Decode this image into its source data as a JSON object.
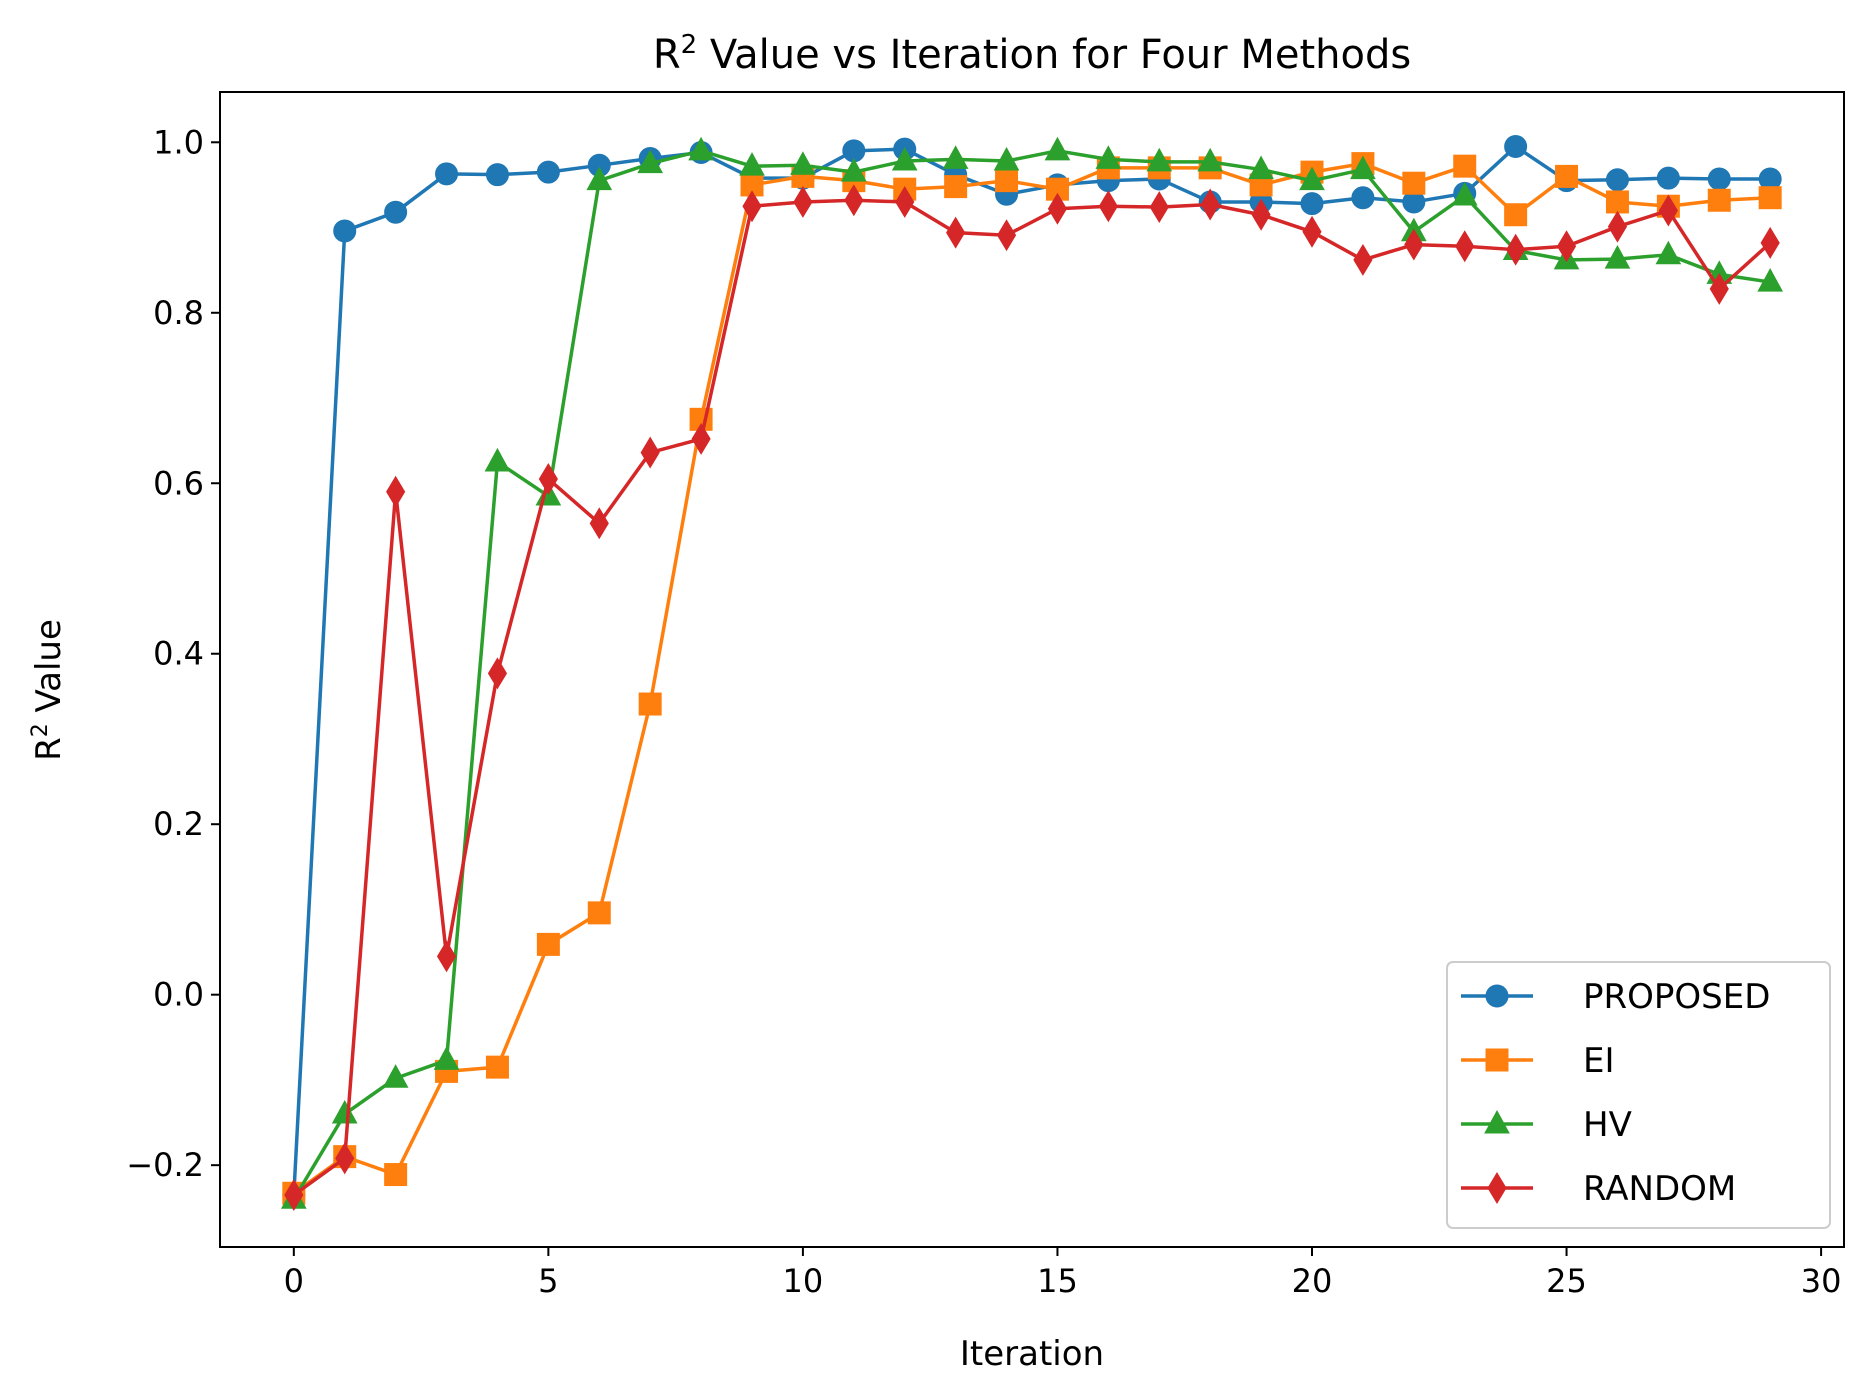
{
  "chart_data": {
    "type": "line",
    "title_main": "R",
    "title_sup": "2",
    "title_rest": " Value vs Iteration for Four Methods",
    "xlabel": "Iteration",
    "ylabel_main": "R",
    "ylabel_sup": "2",
    "ylabel_rest": " Value",
    "xlim": [
      -1.45,
      30.45
    ],
    "ylim": [
      -0.296,
      1.059
    ],
    "xticks": [
      0,
      5,
      10,
      15,
      20,
      25,
      30
    ],
    "xtick_labels": [
      "0",
      "5",
      "10",
      "15",
      "20",
      "25",
      "30"
    ],
    "yticks": [
      -0.2,
      0.0,
      0.2,
      0.4,
      0.6,
      0.8,
      1.0
    ],
    "ytick_labels": [
      "−0.2",
      "0.0",
      "0.2",
      "0.4",
      "0.6",
      "0.8",
      "1.0"
    ],
    "grid": false,
    "legend_position": "lower-right",
    "x": [
      0,
      1,
      2,
      3,
      4,
      5,
      6,
      7,
      8,
      9,
      10,
      11,
      12,
      13,
      14,
      15,
      16,
      17,
      18,
      19,
      20,
      21,
      22,
      23,
      24,
      25,
      26,
      27,
      28,
      29
    ],
    "series": [
      {
        "name": "PROPOSED",
        "color": "#1f77b4",
        "marker": "circle",
        "values": [
          -0.235,
          0.896,
          0.918,
          0.963,
          0.962,
          0.965,
          0.973,
          0.981,
          0.988,
          0.958,
          0.958,
          0.99,
          0.992,
          0.962,
          0.939,
          0.95,
          0.955,
          0.957,
          0.93,
          0.93,
          0.928,
          0.935,
          0.93,
          0.94,
          0.995,
          0.955,
          0.956,
          0.958,
          0.957,
          0.957
        ]
      },
      {
        "name": "EI",
        "color": "#ff7f0e",
        "marker": "square",
        "values": [
          -0.233,
          -0.19,
          -0.211,
          -0.09,
          -0.085,
          0.059,
          0.096,
          0.341,
          0.675,
          0.95,
          0.96,
          0.955,
          0.945,
          0.948,
          0.955,
          0.945,
          0.97,
          0.97,
          0.97,
          0.95,
          0.965,
          0.975,
          0.952,
          0.972,
          0.915,
          0.96,
          0.93,
          0.925,
          0.932,
          0.935
        ]
      },
      {
        "name": "HV",
        "color": "#2ca02c",
        "marker": "triangle",
        "values": [
          -0.24,
          -0.14,
          -0.098,
          -0.077,
          0.625,
          0.585,
          0.955,
          0.975,
          0.99,
          0.972,
          0.973,
          0.965,
          0.978,
          0.98,
          0.978,
          0.99,
          0.98,
          0.977,
          0.977,
          0.968,
          0.955,
          0.968,
          0.895,
          0.937,
          0.873,
          0.862,
          0.863,
          0.868,
          0.845,
          0.836
        ]
      },
      {
        "name": "RANDOM",
        "color": "#d62728",
        "marker": "diamond",
        "values": [
          -0.235,
          -0.192,
          0.59,
          0.045,
          0.377,
          0.605,
          0.553,
          0.636,
          0.652,
          0.925,
          0.93,
          0.932,
          0.93,
          0.894,
          0.891,
          0.922,
          0.925,
          0.924,
          0.927,
          0.915,
          0.895,
          0.862,
          0.88,
          0.878,
          0.874,
          0.878,
          0.901,
          0.92,
          0.828,
          0.882
        ]
      }
    ]
  }
}
